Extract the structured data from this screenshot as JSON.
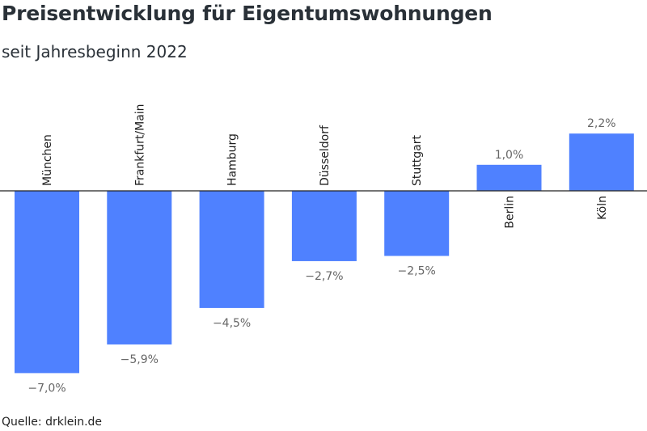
{
  "title": "Preisentwicklung für Eigentumswohnungen",
  "subtitle": "seit Jahresbeginn 2022",
  "source": "Quelle: drklein.de",
  "colors": {
    "bar": "#4f81ff",
    "axis": "#222222",
    "label": "#666666",
    "title": "#2a3138"
  },
  "chart_data": {
    "type": "bar",
    "title": "Preisentwicklung für Eigentumswohnungen",
    "subtitle": "seit Jahresbeginn 2022",
    "categories": [
      "München",
      "Frankfurt/Main",
      "Hamburg",
      "Düsseldorf",
      "Stuttgart",
      "Berlin",
      "Köln"
    ],
    "values": [
      -7.0,
      -5.9,
      -4.5,
      -2.7,
      -2.5,
      1.0,
      2.2
    ],
    "value_labels": [
      "−7,0%",
      "−5,9%",
      "−4,5%",
      "−2,7%",
      "−2,5%",
      "1,0%",
      "2,2%"
    ],
    "unit": "%",
    "grid": false,
    "legend": "none"
  }
}
